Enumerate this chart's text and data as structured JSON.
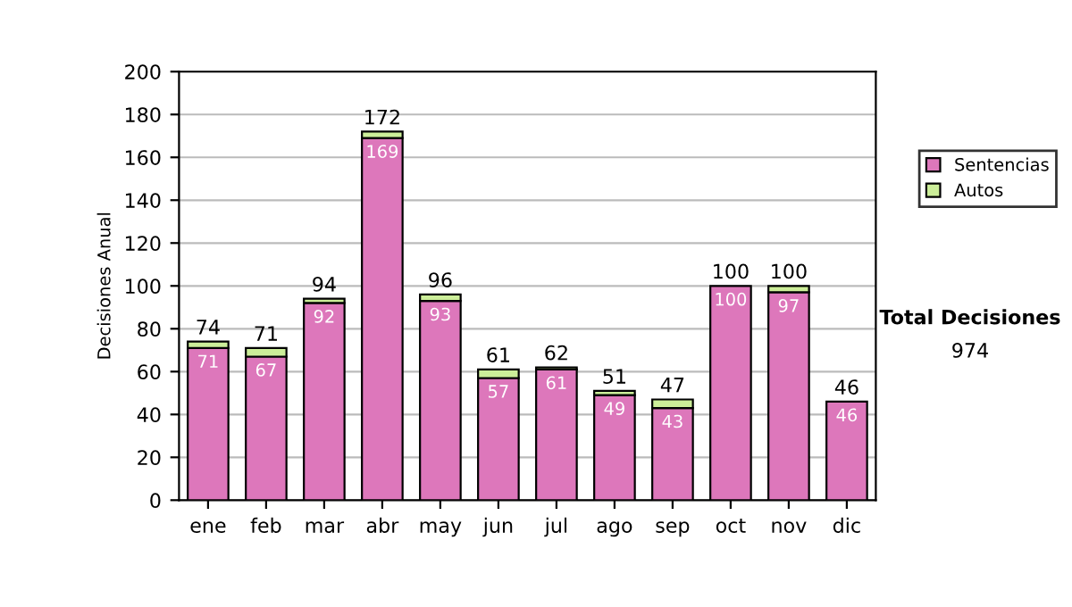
{
  "chart_data": {
    "type": "bar",
    "stacked": true,
    "ylabel": "Decisiones Anual",
    "categories": [
      "ene",
      "feb",
      "mar",
      "abr",
      "may",
      "jun",
      "jul",
      "ago",
      "sep",
      "oct",
      "nov",
      "dic"
    ],
    "series": [
      {
        "name": "Sentencias",
        "color": "#dd77bb",
        "values": [
          71,
          67,
          92,
          169,
          93,
          57,
          61,
          49,
          43,
          100,
          97,
          46
        ],
        "value_labels": [
          "71",
          "67",
          "92",
          "169",
          "93",
          "57",
          "61",
          "49",
          "43",
          "100",
          "97",
          "46"
        ]
      },
      {
        "name": "Autos",
        "color": "#ccee99",
        "values": [
          3,
          4,
          2,
          3,
          3,
          4,
          1,
          2,
          4,
          0,
          3,
          0
        ]
      }
    ],
    "totals": [
      "74",
      "71",
      "94",
      "172",
      "96",
      "61",
      "62",
      "51",
      "47",
      "100",
      "100",
      "46"
    ],
    "ylim": [
      0,
      200
    ],
    "yticks": [
      0,
      20,
      40,
      60,
      80,
      100,
      120,
      140,
      160,
      180,
      200
    ],
    "grid": "y",
    "legend": "right",
    "annotations": [
      "Total Decisiones",
      "974"
    ]
  }
}
